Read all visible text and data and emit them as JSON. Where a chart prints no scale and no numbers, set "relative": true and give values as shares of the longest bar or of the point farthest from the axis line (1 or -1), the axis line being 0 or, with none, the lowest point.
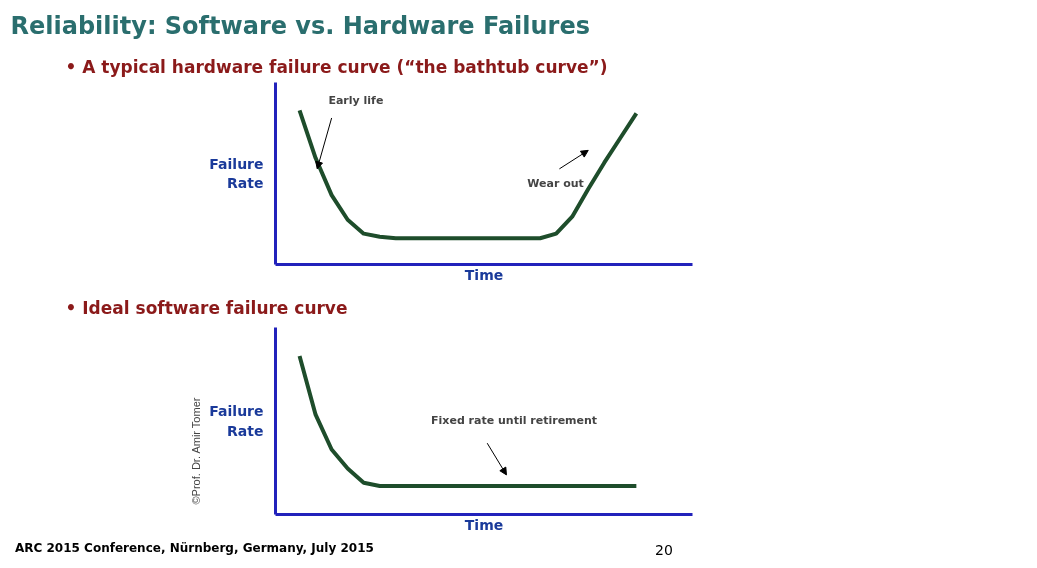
{
  "chart_data": [
    {
      "type": "line",
      "title": "Reliability: Software vs. Hardware Failures",
      "subtitle": "•   A typical hardware failure curve (“the bathtub curve”)",
      "xlabel": "Time",
      "ylabel": "Failure\nRate",
      "relative": true,
      "marker": "none",
      "line_style": "solid",
      "categories": [
        null,
        null,
        null,
        null,
        null,
        null,
        null,
        null,
        null,
        null,
        null,
        null,
        null,
        null,
        null,
        null,
        null,
        null,
        null,
        null,
        null,
        null
      ],
      "series": [
        {
          "color": "#1e4d2b",
          "values": [
            1.0,
            0.69,
            0.45,
            0.29,
            0.2,
            0.18,
            0.17,
            0.17,
            0.17,
            0.17,
            0.17,
            0.17,
            0.17,
            0.17,
            0.17,
            0.17,
            0.2,
            0.31,
            0.49,
            0.66,
            0.82,
            0.98
          ]
        }
      ],
      "annotations": [
        "Early life",
        "Wear out"
      ]
    },
    {
      "type": "line",
      "title": "•   Ideal software failure curve",
      "xlabel": "Time",
      "ylabel": "Failure\nRate",
      "relative": true,
      "marker": "none",
      "line_style": "solid",
      "categories": [
        null,
        null,
        null,
        null,
        null,
        null,
        null,
        null,
        null,
        null,
        null,
        null,
        null,
        null,
        null,
        null,
        null,
        null,
        null,
        null,
        null,
        null
      ],
      "series": [
        {
          "color": "#1e4d2b",
          "values": [
            1.0,
            0.63,
            0.41,
            0.29,
            0.2,
            0.18,
            0.18,
            0.18,
            0.18,
            0.18,
            0.18,
            0.18,
            0.18,
            0.18,
            0.18,
            0.18,
            0.18,
            0.18,
            0.18,
            0.18,
            0.18,
            0.18
          ]
        }
      ],
      "annotations": [
        "Fixed rate until retirement",
        "ARC 2015 Conference, Nürnberg, Germany, July 2015",
        "20",
        "©Prof. Dr. Amir Tomer"
      ]
    }
  ]
}
